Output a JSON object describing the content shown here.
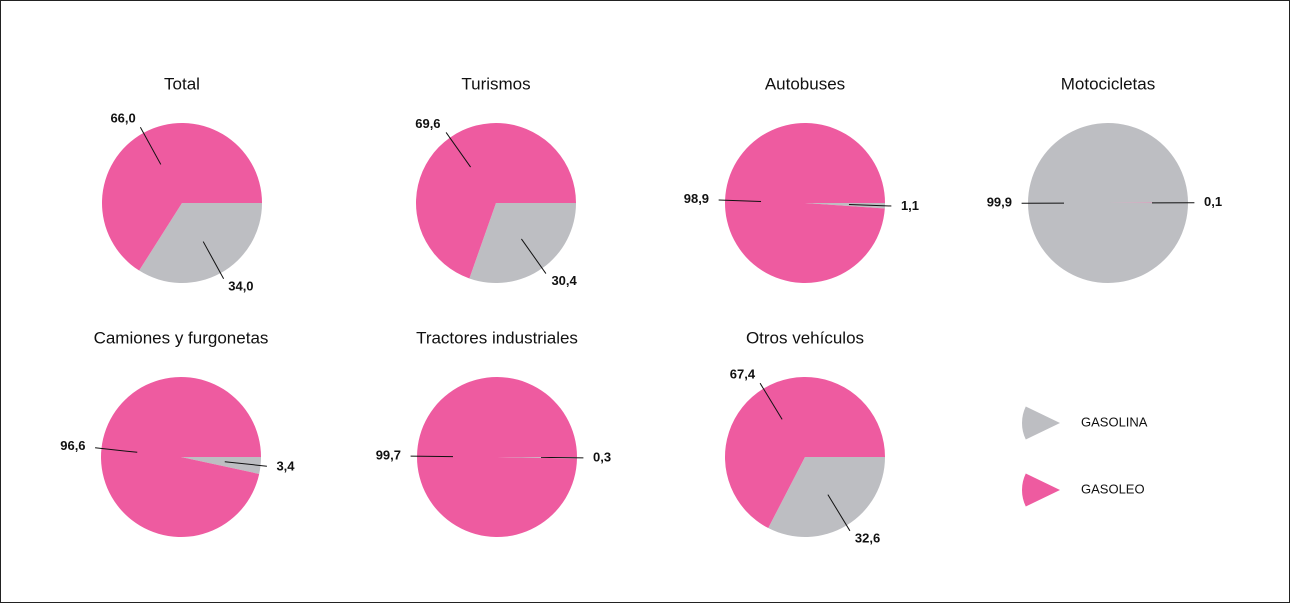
{
  "chart_data": [
    {
      "type": "pie",
      "title": "Total",
      "categories": [
        "GASOLINA",
        "GASOLEO"
      ],
      "values": [
        34.0,
        66.0
      ],
      "value_labels": [
        "34,0",
        "66,0"
      ],
      "colors": [
        "#bdbec2",
        "#ee5ba0"
      ]
    },
    {
      "type": "pie",
      "title": "Turismos",
      "categories": [
        "GASOLINA",
        "GASOLEO"
      ],
      "values": [
        30.4,
        69.6
      ],
      "value_labels": [
        "30,4",
        "69,6"
      ],
      "colors": [
        "#bdbec2",
        "#ee5ba0"
      ]
    },
    {
      "type": "pie",
      "title": "Autobuses",
      "categories": [
        "GASOLINA",
        "GASOLEO"
      ],
      "values": [
        1.1,
        98.9
      ],
      "value_labels": [
        "1,1",
        "98,9"
      ],
      "colors": [
        "#bdbec2",
        "#ee5ba0"
      ]
    },
    {
      "type": "pie",
      "title": "Motocicletas",
      "categories": [
        "GASOLINA",
        "GASOLEO"
      ],
      "values": [
        99.9,
        0.1
      ],
      "value_labels": [
        "99,9",
        "0,1"
      ],
      "colors": [
        "#bdbec2",
        "#ee5ba0"
      ]
    },
    {
      "type": "pie",
      "title": "Camiones y furgonetas",
      "categories": [
        "GASOLINA",
        "GASOLEO"
      ],
      "values": [
        3.4,
        96.6
      ],
      "value_labels": [
        "3,4",
        "96,6"
      ],
      "colors": [
        "#bdbec2",
        "#ee5ba0"
      ]
    },
    {
      "type": "pie",
      "title": "Tractores industriales",
      "categories": [
        "GASOLINA",
        "GASOLEO"
      ],
      "values": [
        0.3,
        99.7
      ],
      "value_labels": [
        "0,3",
        "99,7"
      ],
      "colors": [
        "#bdbec2",
        "#ee5ba0"
      ]
    },
    {
      "type": "pie",
      "title": "Otros vehículos",
      "categories": [
        "GASOLINA",
        "GASOLEO"
      ],
      "values": [
        32.6,
        67.4
      ],
      "value_labels": [
        "32,6",
        "67,4"
      ],
      "colors": [
        "#bdbec2",
        "#ee5ba0"
      ]
    }
  ]
}
